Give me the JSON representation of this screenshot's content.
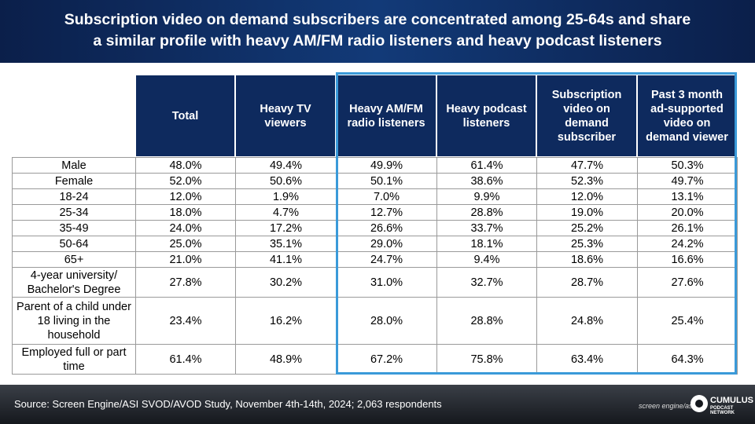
{
  "header": {
    "title_lines": [
      "Subscription video on demand subscribers are concentrated among 25-64s and share",
      "a similar profile with heavy AM/FM radio listeners and heavy podcast listeners"
    ]
  },
  "table": {
    "columns": [
      "Total",
      "Heavy TV viewers",
      "Heavy AM/FM radio listeners",
      "Heavy podcast listeners",
      "Subscription video on demand subscriber",
      "Past 3 month ad-supported video on demand viewer"
    ],
    "rows": [
      [
        "Male",
        "48.0%",
        "49.4%",
        "49.9%",
        "61.4%",
        "47.7%",
        "50.3%"
      ],
      [
        "Female",
        "52.0%",
        "50.6%",
        "50.1%",
        "38.6%",
        "52.3%",
        "49.7%"
      ],
      [
        "18-24",
        "12.0%",
        "1.9%",
        "7.0%",
        "9.9%",
        "12.0%",
        "13.1%"
      ],
      [
        "25-34",
        "18.0%",
        "4.7%",
        "12.7%",
        "28.8%",
        "19.0%",
        "20.0%"
      ],
      [
        "35-49",
        "24.0%",
        "17.2%",
        "26.6%",
        "33.7%",
        "25.2%",
        "26.1%"
      ],
      [
        "50-64",
        "25.0%",
        "35.1%",
        "29.0%",
        "18.1%",
        "25.3%",
        "24.2%"
      ],
      [
        "65+",
        "21.0%",
        "41.1%",
        "24.7%",
        "9.4%",
        "18.6%",
        "16.6%"
      ],
      [
        "4-year university/ Bachelor's Degree",
        "27.8%",
        "30.2%",
        "31.0%",
        "32.7%",
        "28.7%",
        "27.6%"
      ],
      [
        "Parent of a child under 18 living in the household",
        "23.4%",
        "16.2%",
        "28.0%",
        "28.8%",
        "24.8%",
        "25.4%"
      ],
      [
        "Employed full or part time",
        "61.4%",
        "48.9%",
        "67.2%",
        "75.8%",
        "63.4%",
        "64.3%"
      ]
    ]
  },
  "footer": {
    "source": "Source: Screen Engine/ASI SVOD/AVOD Study, November 4th-14th, 2024; 2,063 respondents",
    "logos": [
      "screen engine/asi",
      "CUMULUS",
      "PODCAST NETWORK"
    ]
  }
}
